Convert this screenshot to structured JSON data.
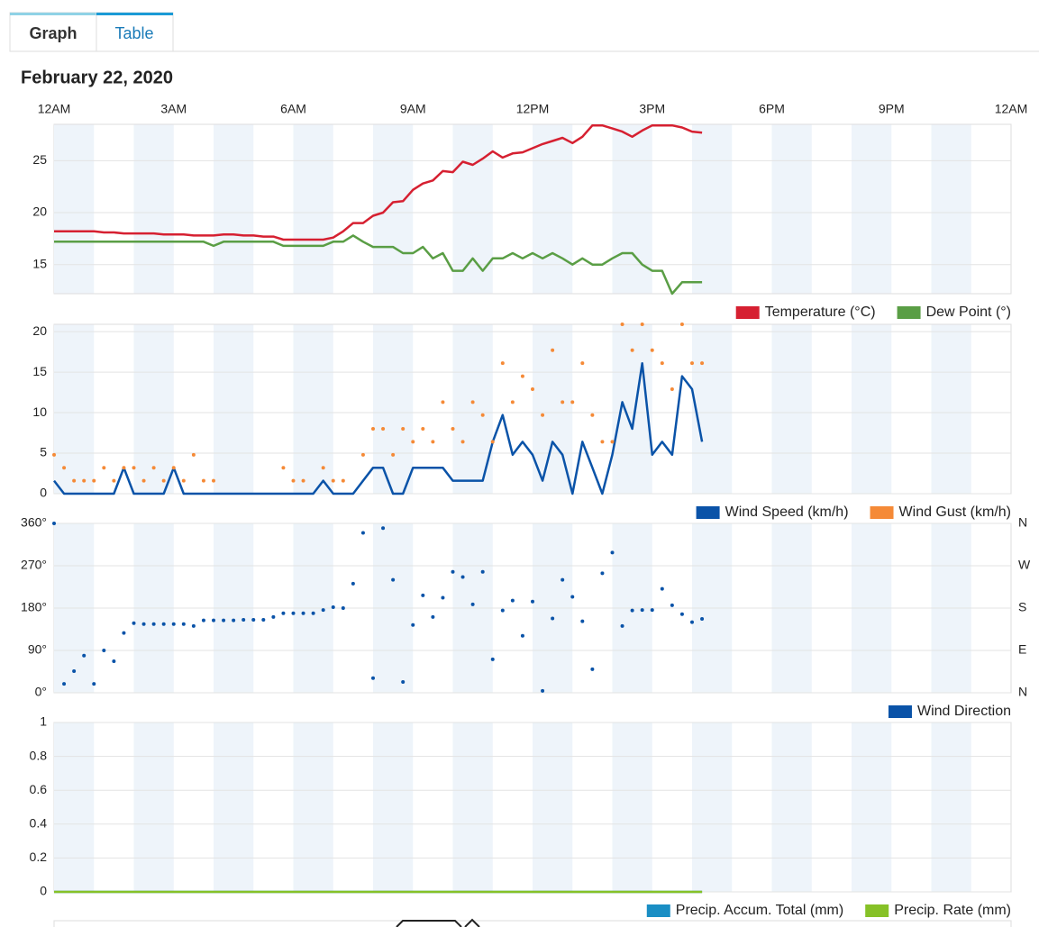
{
  "tabs": [
    "Graph",
    "Table"
  ],
  "date": "February 22, 2020",
  "chart_data": [
    {
      "type": "line",
      "xlim": [
        0,
        24
      ],
      "xticks": [
        {
          "value": 0,
          "label": "12AM"
        },
        {
          "value": 3,
          "label": "3AM"
        },
        {
          "value": 6,
          "label": "6AM"
        },
        {
          "value": 9,
          "label": "9AM"
        },
        {
          "value": 12,
          "label": "12PM"
        },
        {
          "value": 15,
          "label": "3PM"
        },
        {
          "value": 18,
          "label": "6PM"
        },
        {
          "value": 21,
          "label": "9PM"
        },
        {
          "value": 24,
          "label": "12AM"
        }
      ],
      "x": [
        0,
        0.25,
        0.5,
        0.75,
        1,
        1.25,
        1.5,
        1.75,
        2,
        2.25,
        2.5,
        2.75,
        3,
        3.25,
        3.5,
        3.75,
        4,
        4.25,
        4.5,
        4.75,
        5,
        5.25,
        5.5,
        5.75,
        6,
        6.25,
        6.5,
        6.75,
        7,
        7.25,
        7.5,
        7.75,
        8,
        8.25,
        8.5,
        8.75,
        9,
        9.25,
        9.5,
        9.75,
        10,
        10.25,
        10.5,
        10.75,
        11,
        11.25,
        11.5,
        11.75,
        12,
        12.25,
        12.5,
        12.75,
        13,
        13.25,
        13.5,
        13.75,
        14,
        14.25,
        14.5,
        14.75,
        15,
        15.25,
        15.5,
        15.75,
        16,
        16.25
      ],
      "ylim": [
        12.2,
        28.5
      ],
      "yticks": [
        15,
        20,
        25
      ],
      "grid": true,
      "series": [
        {
          "name": "Temperature (°C)",
          "color": "#d62031",
          "values": [
            18.2,
            18.2,
            18.2,
            18.2,
            18.2,
            18.1,
            18.1,
            18.0,
            18.0,
            18.0,
            18.0,
            17.9,
            17.9,
            17.9,
            17.8,
            17.8,
            17.8,
            17.9,
            17.9,
            17.8,
            17.8,
            17.7,
            17.7,
            17.4,
            17.4,
            17.4,
            17.4,
            17.4,
            17.6,
            18.2,
            19.0,
            19.0,
            19.7,
            20.0,
            21.0,
            21.1,
            22.2,
            22.8,
            23.1,
            24.0,
            23.9,
            24.9,
            24.6,
            25.2,
            25.9,
            25.3,
            25.7,
            25.8,
            26.2,
            26.6,
            26.9,
            27.2,
            26.7,
            27.3,
            28.4,
            28.4,
            28.1,
            27.8,
            27.3,
            27.9,
            28.4,
            28.4,
            28.4,
            28.2,
            27.8,
            27.7
          ]
        },
        {
          "name": "Dew Point (°)",
          "color": "#5a9e45",
          "values": [
            17.2,
            17.2,
            17.2,
            17.2,
            17.2,
            17.2,
            17.2,
            17.2,
            17.2,
            17.2,
            17.2,
            17.2,
            17.2,
            17.2,
            17.2,
            17.2,
            16.8,
            17.2,
            17.2,
            17.2,
            17.2,
            17.2,
            17.2,
            16.8,
            16.8,
            16.8,
            16.8,
            16.8,
            17.2,
            17.2,
            17.8,
            17.2,
            16.7,
            16.7,
            16.7,
            16.1,
            16.1,
            16.7,
            15.6,
            16.1,
            14.4,
            14.4,
            15.6,
            14.4,
            15.6,
            15.6,
            16.1,
            15.6,
            16.1,
            15.6,
            16.1,
            15.6,
            15.0,
            15.6,
            15.0,
            15.0,
            15.6,
            16.1,
            16.1,
            15.0,
            14.4,
            14.4,
            12.2,
            13.3,
            13.3,
            13.3
          ]
        }
      ]
    },
    {
      "type": "line",
      "x": [
        0,
        0.25,
        0.5,
        0.75,
        1,
        1.25,
        1.5,
        1.75,
        2,
        2.25,
        2.5,
        2.75,
        3,
        3.25,
        3.5,
        3.75,
        4,
        4.25,
        4.5,
        4.75,
        5,
        5.25,
        5.5,
        5.75,
        6,
        6.25,
        6.5,
        6.75,
        7,
        7.25,
        7.5,
        7.75,
        8,
        8.25,
        8.5,
        8.75,
        9,
        9.25,
        9.5,
        9.75,
        10,
        10.25,
        10.5,
        10.75,
        11,
        11.25,
        11.5,
        11.75,
        12,
        12.25,
        12.5,
        12.75,
        13,
        13.25,
        13.5,
        13.75,
        14,
        14.25,
        14.5,
        14.75,
        15,
        15.25,
        15.5,
        15.75,
        16,
        16.25
      ],
      "ylim": [
        0,
        20.9
      ],
      "yticks": [
        0,
        5,
        10,
        15,
        20
      ],
      "grid": true,
      "series": [
        {
          "name": "Wind Speed (km/h)",
          "color": "#0a53a8",
          "values": [
            1.6,
            0,
            0,
            0,
            0,
            0,
            0,
            3.2,
            0,
            0,
            0,
            0,
            3.2,
            0,
            0,
            0,
            0,
            0,
            0,
            0,
            0,
            0,
            0,
            0,
            0,
            0,
            0,
            1.6,
            0,
            0,
            0,
            1.6,
            3.2,
            3.2,
            0,
            0,
            3.2,
            3.2,
            3.2,
            3.2,
            1.6,
            1.6,
            1.6,
            1.6,
            6.4,
            9.7,
            4.8,
            6.4,
            4.8,
            1.6,
            6.4,
            4.8,
            0,
            6.4,
            3.2,
            0,
            4.8,
            11.3,
            8.0,
            16.1,
            4.8,
            6.4,
            4.8,
            14.5,
            12.9,
            6.4
          ]
        },
        {
          "name": "Wind Gust (km/h)",
          "color": "#f58a37",
          "type": "scatter",
          "values": [
            4.8,
            3.2,
            1.6,
            1.6,
            1.6,
            3.2,
            1.6,
            3.2,
            3.2,
            1.6,
            3.2,
            1.6,
            3.2,
            1.6,
            4.8,
            1.6,
            1.6,
            null,
            null,
            null,
            null,
            null,
            null,
            3.2,
            1.6,
            1.6,
            null,
            3.2,
            1.6,
            1.6,
            null,
            4.8,
            8.0,
            8.0,
            4.8,
            8.0,
            6.4,
            8.0,
            6.4,
            11.3,
            8.0,
            6.4,
            11.3,
            9.7,
            6.4,
            16.1,
            11.3,
            14.5,
            12.9,
            9.7,
            17.7,
            11.3,
            11.3,
            16.1,
            9.7,
            6.4,
            6.4,
            20.9,
            17.7,
            20.9,
            17.7,
            16.1,
            12.9,
            20.9,
            16.1,
            16.1
          ]
        }
      ]
    },
    {
      "type": "scatter",
      "x": [
        0,
        0.25,
        0.5,
        0.75,
        1,
        1.25,
        1.5,
        1.75,
        2,
        2.25,
        2.5,
        2.75,
        3,
        3.25,
        3.5,
        3.75,
        4,
        4.25,
        4.5,
        4.75,
        5,
        5.25,
        5.5,
        5.75,
        6,
        6.25,
        6.5,
        6.75,
        7,
        7.25,
        7.5,
        7.75,
        8,
        8.25,
        8.5,
        8.75,
        9,
        9.25,
        9.5,
        9.75,
        10,
        10.25,
        10.5,
        10.75,
        11,
        11.25,
        11.5,
        11.75,
        12,
        12.25,
        12.5,
        12.75,
        13,
        13.25,
        13.5,
        13.75,
        14,
        14.25,
        14.5,
        14.75,
        15,
        15.25,
        15.5,
        15.75,
        16,
        16.25
      ],
      "ylim": [
        0,
        360
      ],
      "yticks": [
        {
          "value": 0,
          "label": "0°"
        },
        {
          "value": 90,
          "label": "90°"
        },
        {
          "value": 180,
          "label": "180°"
        },
        {
          "value": 270,
          "label": "270°"
        },
        {
          "value": 360,
          "label": "360°"
        }
      ],
      "y2lim": [
        0,
        360
      ],
      "y2ticks": [
        {
          "value": 0,
          "label": "N"
        },
        {
          "value": 90,
          "label": "E"
        },
        {
          "value": 180,
          "label": "S"
        },
        {
          "value": 270,
          "label": "W"
        },
        {
          "value": 360,
          "label": "N"
        }
      ],
      "grid": true,
      "series": [
        {
          "name": "Wind Direction",
          "color": "#0a53a8",
          "values": [
            360,
            19,
            46,
            79,
            19,
            90,
            67,
            127,
            148,
            146,
            146,
            146,
            146,
            146,
            142,
            154,
            154,
            154,
            154,
            155,
            155,
            155,
            161,
            169,
            169,
            169,
            169,
            176,
            182,
            180,
            232,
            340,
            31,
            350,
            240,
            23,
            144,
            207,
            161,
            202,
            257,
            246,
            188,
            257,
            71,
            175,
            196,
            121,
            194,
            4,
            158,
            240,
            204,
            152,
            50,
            254,
            298,
            142,
            175,
            176,
            176,
            221,
            186,
            167,
            150,
            157
          ]
        }
      ]
    },
    {
      "type": "line",
      "x": [
        0,
        0.25,
        0.5,
        0.75,
        1,
        1.25,
        1.5,
        1.75,
        2,
        2.25,
        2.5,
        2.75,
        3,
        3.25,
        3.5,
        3.75,
        4,
        4.25,
        4.5,
        4.75,
        5,
        5.25,
        5.5,
        5.75,
        6,
        6.25,
        6.5,
        6.75,
        7,
        7.25,
        7.5,
        7.75,
        8,
        8.25,
        8.5,
        8.75,
        9,
        9.25,
        9.5,
        9.75,
        10,
        10.25,
        10.5,
        10.75,
        11,
        11.25,
        11.5,
        11.75,
        12,
        12.25,
        12.5,
        12.75,
        13,
        13.25,
        13.5,
        13.75,
        14,
        14.25,
        14.5,
        14.75,
        15,
        15.25,
        15.5,
        15.75,
        16,
        16.25
      ],
      "ylim": [
        0,
        1
      ],
      "yticks": [
        0,
        0.2,
        0.4,
        0.6,
        0.8,
        1
      ],
      "grid": true,
      "series": [
        {
          "name": "Precip. Accum. Total (mm)",
          "color": "#1a8ec4",
          "values": [
            0,
            0,
            0,
            0,
            0,
            0,
            0,
            0,
            0,
            0,
            0,
            0,
            0,
            0,
            0,
            0,
            0,
            0,
            0,
            0,
            0,
            0,
            0,
            0,
            0,
            0,
            0,
            0,
            0,
            0,
            0,
            0,
            0,
            0,
            0,
            0,
            0,
            0,
            0,
            0,
            0,
            0,
            0,
            0,
            0,
            0,
            0,
            0,
            0,
            0,
            0,
            0,
            0,
            0,
            0,
            0,
            0,
            0,
            0,
            0,
            0,
            0,
            0,
            0,
            0,
            0
          ]
        },
        {
          "name": "Precip. Rate (mm)",
          "color": "#86c127",
          "values": [
            0,
            0,
            0,
            0,
            0,
            0,
            0,
            0,
            0,
            0,
            0,
            0,
            0,
            0,
            0,
            0,
            0,
            0,
            0,
            0,
            0,
            0,
            0,
            0,
            0,
            0,
            0,
            0,
            0,
            0,
            0,
            0,
            0,
            0,
            0,
            0,
            0,
            0,
            0,
            0,
            0,
            0,
            0,
            0,
            0,
            0,
            0,
            0,
            0,
            0,
            0,
            0,
            0,
            0,
            0,
            0,
            0,
            0,
            0,
            0,
            0,
            0,
            0,
            0,
            0,
            0
          ]
        }
      ]
    }
  ]
}
